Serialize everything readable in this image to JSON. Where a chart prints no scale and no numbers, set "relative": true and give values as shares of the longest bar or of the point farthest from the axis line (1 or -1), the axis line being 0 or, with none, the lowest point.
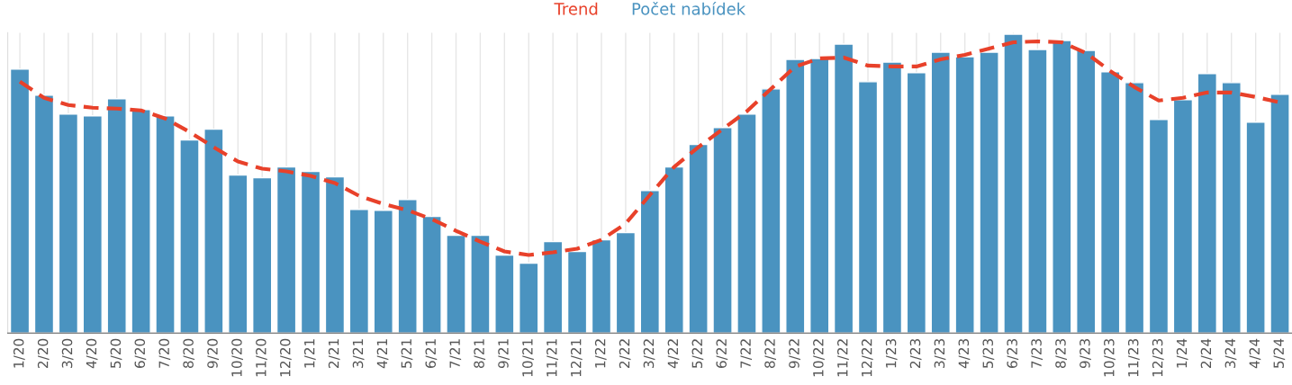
{
  "chart_data": {
    "type": "bar",
    "relative": true,
    "grid": "x",
    "legend": "top",
    "categories": [
      "1/20",
      "2/20",
      "3/20",
      "4/20",
      "5/20",
      "6/20",
      "7/20",
      "8/20",
      "9/20",
      "10/20",
      "11/20",
      "12/20",
      "1/21",
      "2/21",
      "3/21",
      "4/21",
      "5/21",
      "6/21",
      "7/21",
      "8/21",
      "9/21",
      "10/21",
      "11/21",
      "12/21",
      "1/22",
      "2/22",
      "3/22",
      "4/22",
      "5/22",
      "6/22",
      "7/22",
      "8/22",
      "9/22",
      "10/22",
      "11/22",
      "12/22",
      "1/23",
      "2/23",
      "3/23",
      "4/23",
      "5/23",
      "6/23",
      "7/23",
      "8/23",
      "9/23",
      "10/23",
      "11/23",
      "12/23",
      "1/24",
      "2/24",
      "3/24",
      "4/24",
      "5/24"
    ],
    "series": [
      {
        "name": "Trend",
        "type": "line",
        "line_style": "dashed",
        "color": "#e8412a",
        "values": [
          0.841,
          0.787,
          0.763,
          0.754,
          0.751,
          0.745,
          0.718,
          0.673,
          0.622,
          0.574,
          0.55,
          0.541,
          0.526,
          0.502,
          0.459,
          0.432,
          0.411,
          0.381,
          0.342,
          0.306,
          0.273,
          0.261,
          0.27,
          0.282,
          0.312,
          0.366,
          0.462,
          0.556,
          0.622,
          0.682,
          0.742,
          0.817,
          0.892,
          0.919,
          0.922,
          0.895,
          0.892,
          0.892,
          0.916,
          0.931,
          0.952,
          0.973,
          0.976,
          0.973,
          0.937,
          0.877,
          0.823,
          0.778,
          0.787,
          0.805,
          0.805,
          0.79,
          0.772
        ]
      },
      {
        "name": "Počet nabídek",
        "color": "#4a93c0",
        "values": [
          0.883,
          0.796,
          0.733,
          0.727,
          0.784,
          0.748,
          0.727,
          0.646,
          0.682,
          0.529,
          0.52,
          0.556,
          0.541,
          0.523,
          0.414,
          0.411,
          0.447,
          0.39,
          0.327,
          0.327,
          0.261,
          0.234,
          0.306,
          0.273,
          0.312,
          0.336,
          0.477,
          0.556,
          0.631,
          0.688,
          0.733,
          0.817,
          0.916,
          0.919,
          0.967,
          0.841,
          0.907,
          0.871,
          0.94,
          0.925,
          0.94,
          1,
          0.949,
          0.979,
          0.946,
          0.874,
          0.838,
          0.715,
          0.781,
          0.868,
          0.838,
          0.706,
          0.799
        ]
      }
    ]
  }
}
